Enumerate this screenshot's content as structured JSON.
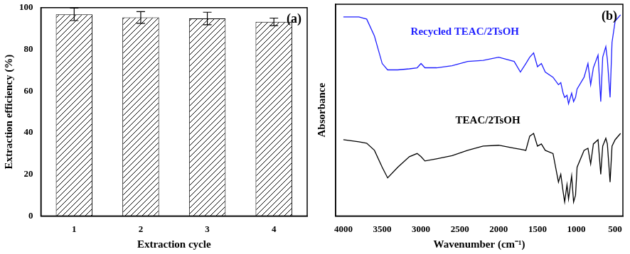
{
  "chart_data": [
    {
      "type": "bar",
      "categories": [
        "1",
        "2",
        "3",
        "4"
      ],
      "values": [
        96.8,
        95.3,
        94.8,
        93.2
      ],
      "errors": [
        3.0,
        2.8,
        3.0,
        1.8
      ],
      "color": "#000000",
      "xlabel": "Extraction cycle",
      "ylabel": "Extraction efficiency (%)",
      "ylim": [
        0,
        100
      ],
      "yticks": [
        0,
        20,
        40,
        60,
        80,
        100
      ],
      "grid": false,
      "annotation": "(a)"
    },
    {
      "type": "line",
      "x": [
        4000,
        3800,
        3700,
        3600,
        3500,
        3430,
        3300,
        3150,
        3050,
        3000,
        2950,
        2800,
        2600,
        2400,
        2200,
        2000,
        1800,
        1720,
        1650,
        1600,
        1550,
        1500,
        1450,
        1400,
        1300,
        1230,
        1200,
        1170,
        1150,
        1120,
        1100,
        1060,
        1035,
        1010,
        990,
        900,
        850,
        815,
        780,
        720,
        685,
        660,
        620,
        600,
        565,
        540,
        500,
        430
      ],
      "series": [
        {
          "name": "Recycled TEAC/2TsOH",
          "color": "#1f1fff",
          "values": [
            94,
            94,
            93,
            85,
            72,
            69,
            69,
            69.5,
            70,
            72,
            70,
            70,
            71,
            73,
            73.5,
            75,
            73,
            68,
            72,
            75,
            77,
            70.5,
            72,
            68,
            65.5,
            62,
            63,
            58,
            56,
            57,
            53,
            58,
            54,
            56,
            60,
            65.5,
            72,
            62,
            70,
            76,
            54,
            75,
            80,
            74,
            56,
            82,
            92,
            95
          ]
        },
        {
          "name": "TEAC/2TsOH",
          "color": "#000000",
          "values": [
            36,
            35,
            34.4,
            31,
            23,
            18,
            23,
            28,
            29.5,
            28,
            26,
            27,
            28.5,
            31,
            33,
            33.4,
            32,
            31.5,
            31,
            37.7,
            39,
            33,
            34,
            31,
            29.5,
            16,
            19.7,
            11.5,
            6.6,
            14.8,
            8,
            19,
            6.6,
            9.8,
            23,
            31,
            32,
            24.6,
            34,
            36,
            19.7,
            33,
            36.7,
            34,
            16,
            33,
            36,
            39
          ]
        }
      ],
      "xlabel": "Wavenumber (cm⁻¹)",
      "ylabel": "Absorbance",
      "xlim": [
        4100,
        400
      ],
      "xticks": [
        4000,
        3500,
        3000,
        2500,
        2000,
        1500,
        1000,
        500
      ],
      "ylim": [
        0,
        100
      ],
      "tick_labels": "x",
      "grid": false,
      "annotation": "(b)"
    }
  ]
}
